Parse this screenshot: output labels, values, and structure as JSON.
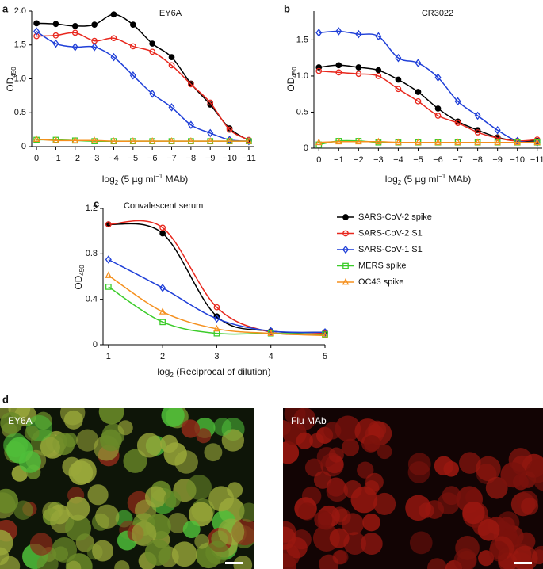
{
  "chart_data": [
    {
      "type": "line",
      "panel": "a",
      "title": "EY6A",
      "y_label": "OD",
      "y_label_sub": "450",
      "x_label": [
        "log",
        "2",
        " (5 µg ml",
        "−1",
        " MAb)"
      ],
      "x": [
        0,
        -1,
        -2,
        -3,
        -4,
        -5,
        -6,
        -7,
        -8,
        -9,
        -10,
        -11
      ],
      "xlim": [
        0.25,
        -11.25
      ],
      "xticks": [
        0,
        {
          "value": -1,
          "label": "−1"
        },
        {
          "value": -2,
          "label": "−2"
        },
        {
          "value": -3,
          "label": "−3"
        },
        {
          "value": -4,
          "label": "−4"
        },
        {
          "value": -5,
          "label": "−5"
        },
        {
          "value": -6,
          "label": "−6"
        },
        {
          "value": -7,
          "label": "−7"
        },
        {
          "value": -8,
          "label": "−8"
        },
        {
          "value": -9,
          "label": "−9"
        },
        {
          "value": -10,
          "label": "−10"
        },
        {
          "value": -11,
          "label": "−11"
        }
      ],
      "ylim": [
        0,
        2
      ],
      "yticks": [
        0,
        0.5,
        {
          "value": 1,
          "label": "1.0"
        },
        1.5,
        {
          "value": 2,
          "label": "2.0"
        }
      ],
      "series": [
        {
          "color": "#000000",
          "marker": "filled-circle",
          "values": [
            1.82,
            1.81,
            1.78,
            1.8,
            1.95,
            1.8,
            1.52,
            1.32,
            0.93,
            0.62,
            0.27,
            0.09
          ]
        },
        {
          "color": "#e8281e",
          "marker": "circle",
          "values": [
            1.63,
            1.64,
            1.68,
            1.56,
            1.6,
            1.48,
            1.4,
            1.2,
            0.92,
            0.65,
            0.25,
            0.1
          ]
        },
        {
          "color": "#1f3fd8",
          "marker": "diamond",
          "values": [
            1.7,
            1.52,
            1.47,
            1.47,
            1.32,
            1.05,
            0.78,
            0.58,
            0.32,
            0.2,
            0.1,
            0.08
          ]
        },
        {
          "color": "#3ccc2a",
          "marker": "square",
          "values": [
            0.1,
            0.1,
            0.09,
            0.08,
            0.08,
            0.08,
            0.08,
            0.08,
            0.08,
            0.08,
            0.08,
            0.08
          ]
        },
        {
          "color": "#f5901e",
          "marker": "triangle",
          "values": [
            0.11,
            0.09,
            0.09,
            0.09,
            0.08,
            0.08,
            0.08,
            0.08,
            0.08,
            0.08,
            0.08,
            0.08
          ]
        }
      ]
    },
    {
      "type": "line",
      "panel": "b",
      "title": "CR3022",
      "y_label": "OD",
      "y_label_sub": "450",
      "x_label": [
        "log",
        "2",
        " (5 µg ml",
        "−1",
        " MAb)"
      ],
      "x": [
        0,
        -1,
        -2,
        -3,
        -4,
        -5,
        -6,
        -7,
        -8,
        -9,
        -10,
        -11
      ],
      "xlim": [
        0.25,
        -11.25
      ],
      "xticks": [
        0,
        {
          "value": -1,
          "label": "−1"
        },
        {
          "value": -2,
          "label": "−2"
        },
        {
          "value": -3,
          "label": "−3"
        },
        {
          "value": -4,
          "label": "−4"
        },
        {
          "value": -5,
          "label": "−5"
        },
        {
          "value": -6,
          "label": "−6"
        },
        {
          "value": -7,
          "label": "−7"
        },
        {
          "value": -8,
          "label": "−8"
        },
        {
          "value": -9,
          "label": "−9"
        },
        {
          "value": -10,
          "label": "−10"
        },
        {
          "value": -11,
          "label": "−11"
        }
      ],
      "ylim": [
        0,
        1.9
      ],
      "yticks": [
        0,
        0.5,
        {
          "value": 1,
          "label": "1.0"
        },
        1.5
      ],
      "series": [
        {
          "color": "#000000",
          "marker": "filled-circle",
          "values": [
            1.12,
            1.15,
            1.12,
            1.08,
            0.95,
            0.78,
            0.55,
            0.37,
            0.25,
            0.15,
            0.1,
            0.1
          ]
        },
        {
          "color": "#e8281e",
          "marker": "circle",
          "values": [
            1.07,
            1.05,
            1.03,
            1.0,
            0.82,
            0.65,
            0.45,
            0.35,
            0.22,
            0.14,
            0.1,
            0.12
          ]
        },
        {
          "color": "#1f3fd8",
          "marker": "diamond",
          "values": [
            1.6,
            1.62,
            1.58,
            1.55,
            1.25,
            1.18,
            0.98,
            0.65,
            0.45,
            0.25,
            0.1,
            0.08
          ]
        },
        {
          "color": "#3ccc2a",
          "marker": "square",
          "values": [
            0.05,
            0.1,
            0.1,
            0.08,
            0.08,
            0.08,
            0.08,
            0.08,
            0.08,
            0.08,
            0.08,
            0.08
          ]
        },
        {
          "color": "#f5901e",
          "marker": "triangle",
          "values": [
            0.08,
            0.09,
            0.09,
            0.09,
            0.08,
            0.08,
            0.08,
            0.08,
            0.08,
            0.08,
            0.08,
            0.08
          ]
        }
      ]
    },
    {
      "type": "line",
      "panel": "c",
      "title": "Convalescent serum",
      "y_label": "OD",
      "y_label_sub": "450",
      "x_label": [
        "log",
        "2",
        " (Reciprocal of dilution)"
      ],
      "x": [
        1,
        2,
        3,
        4,
        5
      ],
      "xlim": [
        0.9,
        5
      ],
      "xticks": [
        1,
        2,
        3,
        4,
        5
      ],
      "ylim": [
        0,
        1.2
      ],
      "yticks": [
        0,
        0.4,
        0.8,
        1.2
      ],
      "series": [
        {
          "name": "SARS-CoV-2 spike",
          "color": "#000000",
          "marker": "filled-circle",
          "values": [
            1.06,
            0.98,
            0.25,
            0.12,
            0.11
          ]
        },
        {
          "name": "SARS-CoV-2 S1",
          "color": "#e8281e",
          "marker": "circle",
          "values": [
            1.06,
            1.03,
            0.33,
            0.11,
            0.1
          ]
        },
        {
          "name": "SARS-CoV-1 S1",
          "color": "#1f3fd8",
          "marker": "diamond",
          "values": [
            0.75,
            0.5,
            0.23,
            0.12,
            0.11
          ]
        },
        {
          "name": "MERS spike",
          "color": "#3ccc2a",
          "marker": "square",
          "values": [
            0.51,
            0.2,
            0.1,
            0.1,
            0.09
          ]
        },
        {
          "name": "OC43 spike",
          "color": "#f5901e",
          "marker": "triangle",
          "values": [
            0.61,
            0.29,
            0.14,
            0.1,
            0.08
          ]
        }
      ]
    }
  ],
  "panel_d": {
    "panel": "d",
    "images": [
      "EY6A",
      "Flu MAb"
    ]
  }
}
